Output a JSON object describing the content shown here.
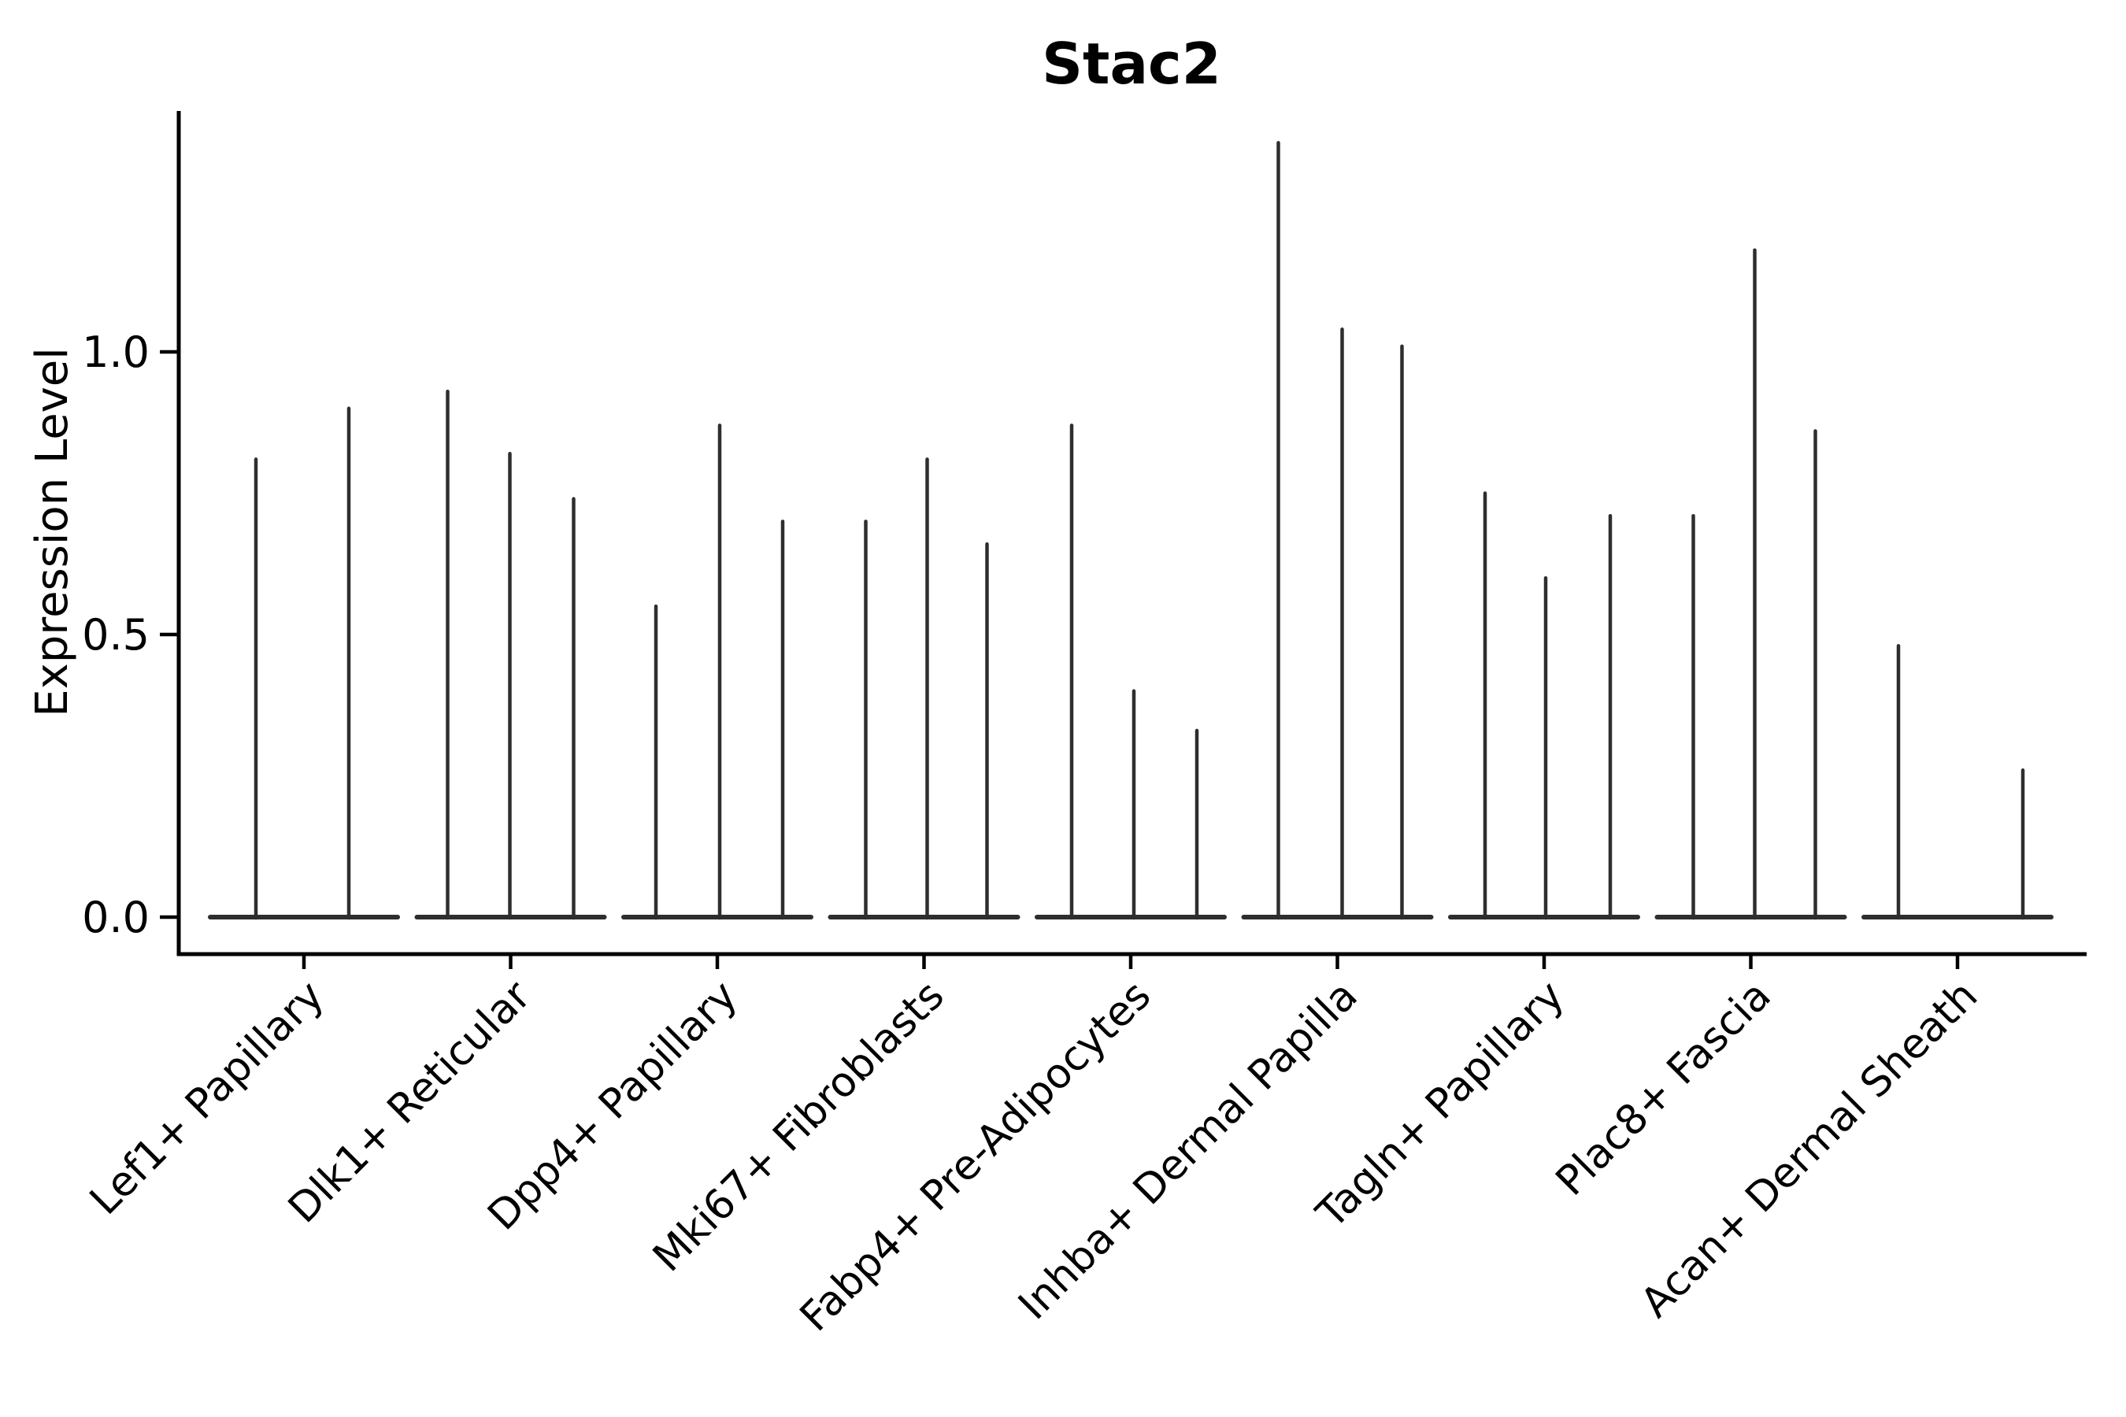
{
  "figure": {
    "title": "Stac2",
    "y_axis_label": "Expression Level"
  },
  "colors": {
    "violin": "#2e2e2e",
    "axis": "#000000",
    "text": "#000000",
    "background": "#ffffff"
  },
  "chart_data": {
    "type": "violin",
    "title": "Stac2",
    "xlabel": "",
    "ylabel": "Expression Level",
    "ylim": [
      0.0,
      1.43
    ],
    "yticks": [
      0.0,
      0.5,
      1.0
    ],
    "ytick_labels": [
      "0.0",
      "0.5",
      "1.0"
    ],
    "grid": false,
    "legend": "none",
    "description": "Each category shows 2-3 collapsed violins: a flat body at expression 0 with a thin density spike rising to the peak expression value.",
    "categories": [
      "Lef1+ Papillary",
      "Dlk1+ Reticular",
      "Dpp4+ Papillary",
      "Mki67+ Fibroblasts",
      "Fabp4+ Pre-Adipocytes",
      "Inhba+ Dermal Papilla",
      "Tagln+ Papillary",
      "Plac8+ Fascia",
      "Acan+ Dermal Sheath"
    ],
    "groups": [
      {
        "label": "Lef1+ Papillary",
        "violins": [
          {
            "dx": -61,
            "peak": 0.81
          },
          {
            "dx": 57,
            "peak": 0.9
          }
        ]
      },
      {
        "label": "Dlk1+ Reticular",
        "violins": [
          {
            "dx": -80,
            "peak": 0.93
          },
          {
            "dx": -1,
            "peak": 0.82
          },
          {
            "dx": 80,
            "peak": 0.74
          }
        ]
      },
      {
        "label": "Dpp4+ Papillary",
        "violins": [
          {
            "dx": -78,
            "peak": 0.55
          },
          {
            "dx": 3,
            "peak": 0.87
          },
          {
            "dx": 83,
            "peak": 0.7
          }
        ]
      },
      {
        "label": "Mki67+ Fibroblasts",
        "violins": [
          {
            "dx": -74,
            "peak": 0.7
          },
          {
            "dx": 4,
            "peak": 0.81
          },
          {
            "dx": 80,
            "peak": 0.66
          }
        ]
      },
      {
        "label": "Fabp4+ Pre-Adipocytes",
        "violins": [
          {
            "dx": -75,
            "peak": 0.87
          },
          {
            "dx": 4,
            "peak": 0.4
          },
          {
            "dx": 84,
            "peak": 0.33
          }
        ]
      },
      {
        "label": "Inhba+ Dermal Papilla",
        "violins": [
          {
            "dx": -75,
            "peak": 1.37
          },
          {
            "dx": 6,
            "peak": 1.04
          },
          {
            "dx": 82,
            "peak": 1.01
          }
        ]
      },
      {
        "label": "Tagln+ Papillary",
        "violins": [
          {
            "dx": -75,
            "peak": 0.75
          },
          {
            "dx": 2,
            "peak": 0.6
          },
          {
            "dx": 84,
            "peak": 0.71
          }
        ]
      },
      {
        "label": "Plac8+ Fascia",
        "violins": [
          {
            "dx": -73,
            "peak": 0.71
          },
          {
            "dx": 5,
            "peak": 1.18
          },
          {
            "dx": 82,
            "peak": 0.86
          }
        ]
      },
      {
        "label": "Acan+ Dermal Sheath",
        "violins": [
          {
            "dx": -75,
            "peak": 0.48
          },
          {
            "dx": 83,
            "peak": 0.26
          }
        ]
      }
    ]
  }
}
